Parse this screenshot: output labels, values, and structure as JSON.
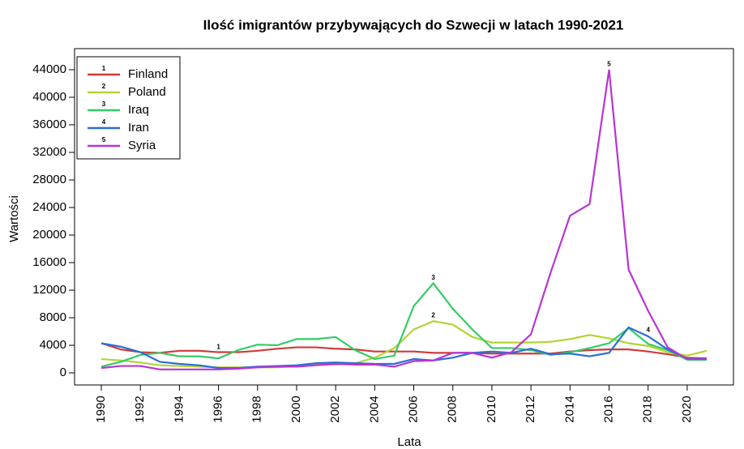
{
  "chart_data": {
    "type": "line",
    "title": "Ilość imigrantów przybywających do Szwecji w latach 1990-2021",
    "x_label": "Lata",
    "y_label": "Wartości",
    "x": [
      1990,
      1991,
      1992,
      1993,
      1994,
      1995,
      1996,
      1997,
      1998,
      1999,
      2000,
      2001,
      2002,
      2003,
      2004,
      2005,
      2006,
      2007,
      2008,
      2009,
      2010,
      2011,
      2012,
      2013,
      2014,
      2015,
      2016,
      2017,
      2018,
      2019,
      2020,
      2021
    ],
    "series": [
      {
        "name": "Finland",
        "color": "#d03a3a",
        "values": [
          4300,
          3400,
          3000,
          2900,
          3200,
          3200,
          3000,
          3000,
          3200,
          3500,
          3700,
          3700,
          3500,
          3400,
          3100,
          3100,
          3100,
          2900,
          2900,
          2900,
          2800,
          2800,
          2800,
          2800,
          3100,
          3300,
          3400,
          3400,
          3100,
          2700,
          2200,
          2100
        ]
      },
      {
        "name": "Poland",
        "color": "#b5d334",
        "values": [
          2000,
          1800,
          1500,
          1100,
          1000,
          900,
          800,
          800,
          800,
          800,
          1000,
          1200,
          1200,
          1400,
          2200,
          3600,
          6300,
          7500,
          7000,
          5200,
          4400,
          4400,
          4400,
          4500,
          4900,
          5500,
          5000,
          4300,
          3900,
          3000,
          2500,
          3200
        ]
      },
      {
        "name": "Iraq",
        "color": "#34cc66",
        "values": [
          900,
          1600,
          2600,
          2900,
          2400,
          2400,
          2100,
          3300,
          4100,
          4000,
          4900,
          4900,
          5200,
          3300,
          2000,
          2500,
          9700,
          13000,
          9300,
          6300,
          3600,
          3600,
          3300,
          2600,
          3000,
          3600,
          4300,
          6500,
          4200,
          3300,
          1900,
          1900
        ]
      },
      {
        "name": "Iran",
        "color": "#2b6fd6",
        "values": [
          4300,
          3800,
          3000,
          1600,
          1300,
          1100,
          700,
          700,
          900,
          1000,
          1100,
          1400,
          1500,
          1400,
          1300,
          1300,
          2000,
          1800,
          2200,
          2900,
          3100,
          2900,
          3500,
          2700,
          2800,
          2400,
          2900,
          6600,
          5300,
          3400,
          2100,
          2100
        ]
      },
      {
        "name": "Syria",
        "color": "#b934d6",
        "values": [
          700,
          1000,
          1000,
          500,
          500,
          500,
          500,
          600,
          800,
          900,
          900,
          1100,
          1300,
          1200,
          1200,
          900,
          1700,
          1800,
          2900,
          2900,
          2200,
          3000,
          5600,
          14500,
          22800,
          24500,
          44000,
          15000,
          9000,
          3700,
          2000,
          2000
        ]
      }
    ],
    "annotations": [
      {
        "text": "1",
        "x": 1996,
        "y": 3700
      },
      {
        "text": "2",
        "x": 2007,
        "y": 8300
      },
      {
        "text": "3",
        "x": 2007,
        "y": 13800
      },
      {
        "text": "4",
        "x": 2018,
        "y": 6200
      },
      {
        "text": "5",
        "x": 2016,
        "y": 44800
      }
    ],
    "xlim": [
      1988.63,
      2022.37
    ],
    "ylim": [
      -1760,
      47060
    ],
    "xticks": [
      1990,
      1992,
      1994,
      1996,
      1998,
      2000,
      2002,
      2004,
      2006,
      2008,
      2010,
      2012,
      2014,
      2016,
      2018,
      2020
    ],
    "yticks": [
      0,
      4000,
      8000,
      12000,
      16000,
      20000,
      24000,
      28000,
      32000,
      36000,
      40000,
      44000
    ],
    "legend": "top-left"
  }
}
